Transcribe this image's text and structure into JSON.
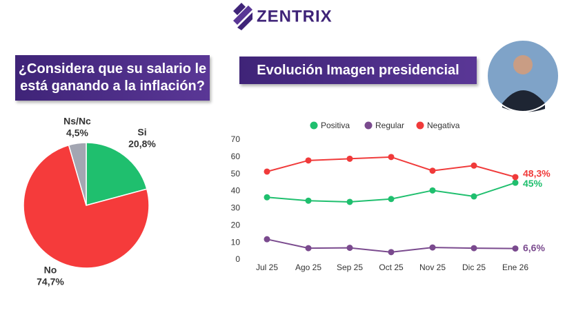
{
  "brand": "ZENTRIX",
  "chart_data": [
    {
      "type": "pie",
      "title": "¿Considera que su salario le está ganando a la inflación?",
      "categories": [
        "Si",
        "No",
        "Ns/Nc"
      ],
      "values": [
        20.8,
        74.7,
        4.5
      ],
      "value_labels": [
        "20,8%",
        "74,7%",
        "4,5%"
      ],
      "colors": [
        "#1fbf6e",
        "#f53b3b",
        "#a3a6b2"
      ]
    },
    {
      "type": "line",
      "title": "Evolución Imagen presidencial",
      "categories": [
        "Jul 25",
        "Ago 25",
        "Sep 25",
        "Oct 25",
        "Nov 25",
        "Dic 25",
        "Ene 26"
      ],
      "series": [
        {
          "name": "Positiva",
          "color": "#1fbf6e",
          "values": [
            36.5,
            34.5,
            33.8,
            35.5,
            40.5,
            37,
            45
          ],
          "value_labels": [
            null,
            null,
            null,
            null,
            null,
            null,
            "45%"
          ]
        },
        {
          "name": "Regular",
          "color": "#7a4a8e",
          "values": [
            12,
            6.8,
            7,
            4.5,
            7.2,
            6.8,
            6.6
          ],
          "value_labels": [
            null,
            null,
            null,
            null,
            null,
            null,
            "6,6%"
          ]
        },
        {
          "name": "Negativa",
          "color": "#f03a3a",
          "values": [
            51.5,
            58,
            59,
            60,
            52,
            55,
            48.3
          ],
          "value_labels": [
            null,
            null,
            null,
            null,
            null,
            null,
            "48,3%"
          ]
        }
      ],
      "ylim": [
        0,
        70
      ],
      "yticks": [
        0,
        10,
        20,
        30,
        40,
        50,
        60,
        70
      ],
      "grid": false,
      "legend": "top"
    }
  ]
}
